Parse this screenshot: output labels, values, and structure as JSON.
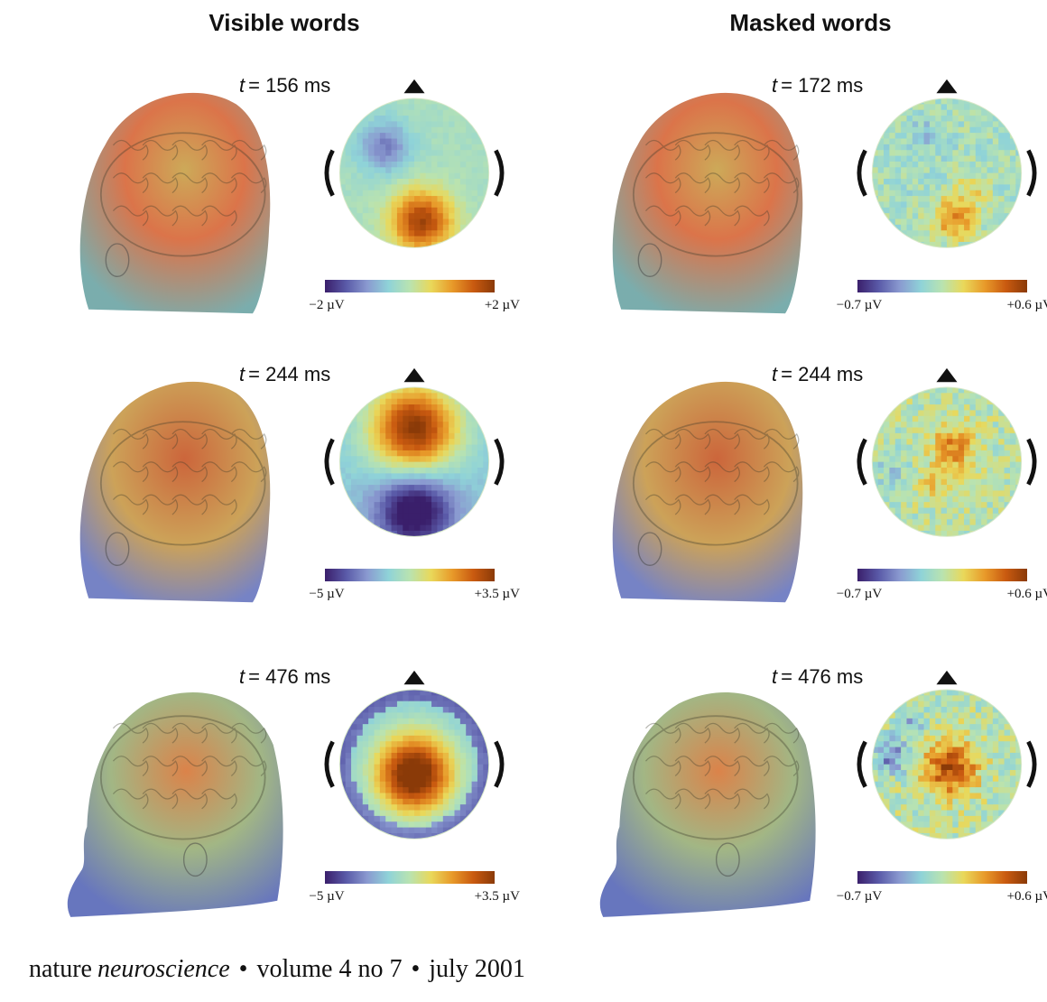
{
  "columns": [
    {
      "title": "Visible words"
    },
    {
      "title": "Masked words"
    }
  ],
  "panels": [
    {
      "col": 0,
      "row": 0,
      "time_var": "t",
      "time_value": "= 156 ms",
      "cbar_min": "−2 µV",
      "cbar_max": "+2 µV",
      "pattern": "posterior-positive"
    },
    {
      "col": 1,
      "row": 0,
      "time_var": "t",
      "time_value": "= 172 ms",
      "cbar_min": "−0.7 µV",
      "cbar_max": "+0.6 µV",
      "pattern": "posterior-weak"
    },
    {
      "col": 0,
      "row": 1,
      "time_var": "t",
      "time_value": "= 244 ms",
      "cbar_min": "−5 µV",
      "cbar_max": "+3.5 µV",
      "pattern": "frontal-positive"
    },
    {
      "col": 1,
      "row": 1,
      "time_var": "t",
      "time_value": "= 244 ms",
      "cbar_min": "−0.7 µV",
      "cbar_max": "+0.6 µV",
      "pattern": "central-weak"
    },
    {
      "col": 0,
      "row": 2,
      "time_var": "t",
      "time_value": "= 476 ms",
      "cbar_min": "−5 µV",
      "cbar_max": "+3.5 µV",
      "pattern": "central-positive"
    },
    {
      "col": 1,
      "row": 2,
      "time_var": "t",
      "time_value": "= 476 ms",
      "cbar_min": "−0.7 µV",
      "cbar_max": "+0.6 µV",
      "pattern": "central-mixed"
    }
  ],
  "colormap": [
    "#3a1f6b",
    "#5a5aa8",
    "#8a9ad0",
    "#8fd3d8",
    "#b9e3b0",
    "#e9d85a",
    "#e89a2a",
    "#c95a10",
    "#8a3a08"
  ],
  "footer": {
    "journal_a": "nature",
    "journal_b": "neuroscience",
    "sep1": "•",
    "volume": "volume 4  no 7",
    "sep2": "•",
    "date": "july 2001"
  }
}
